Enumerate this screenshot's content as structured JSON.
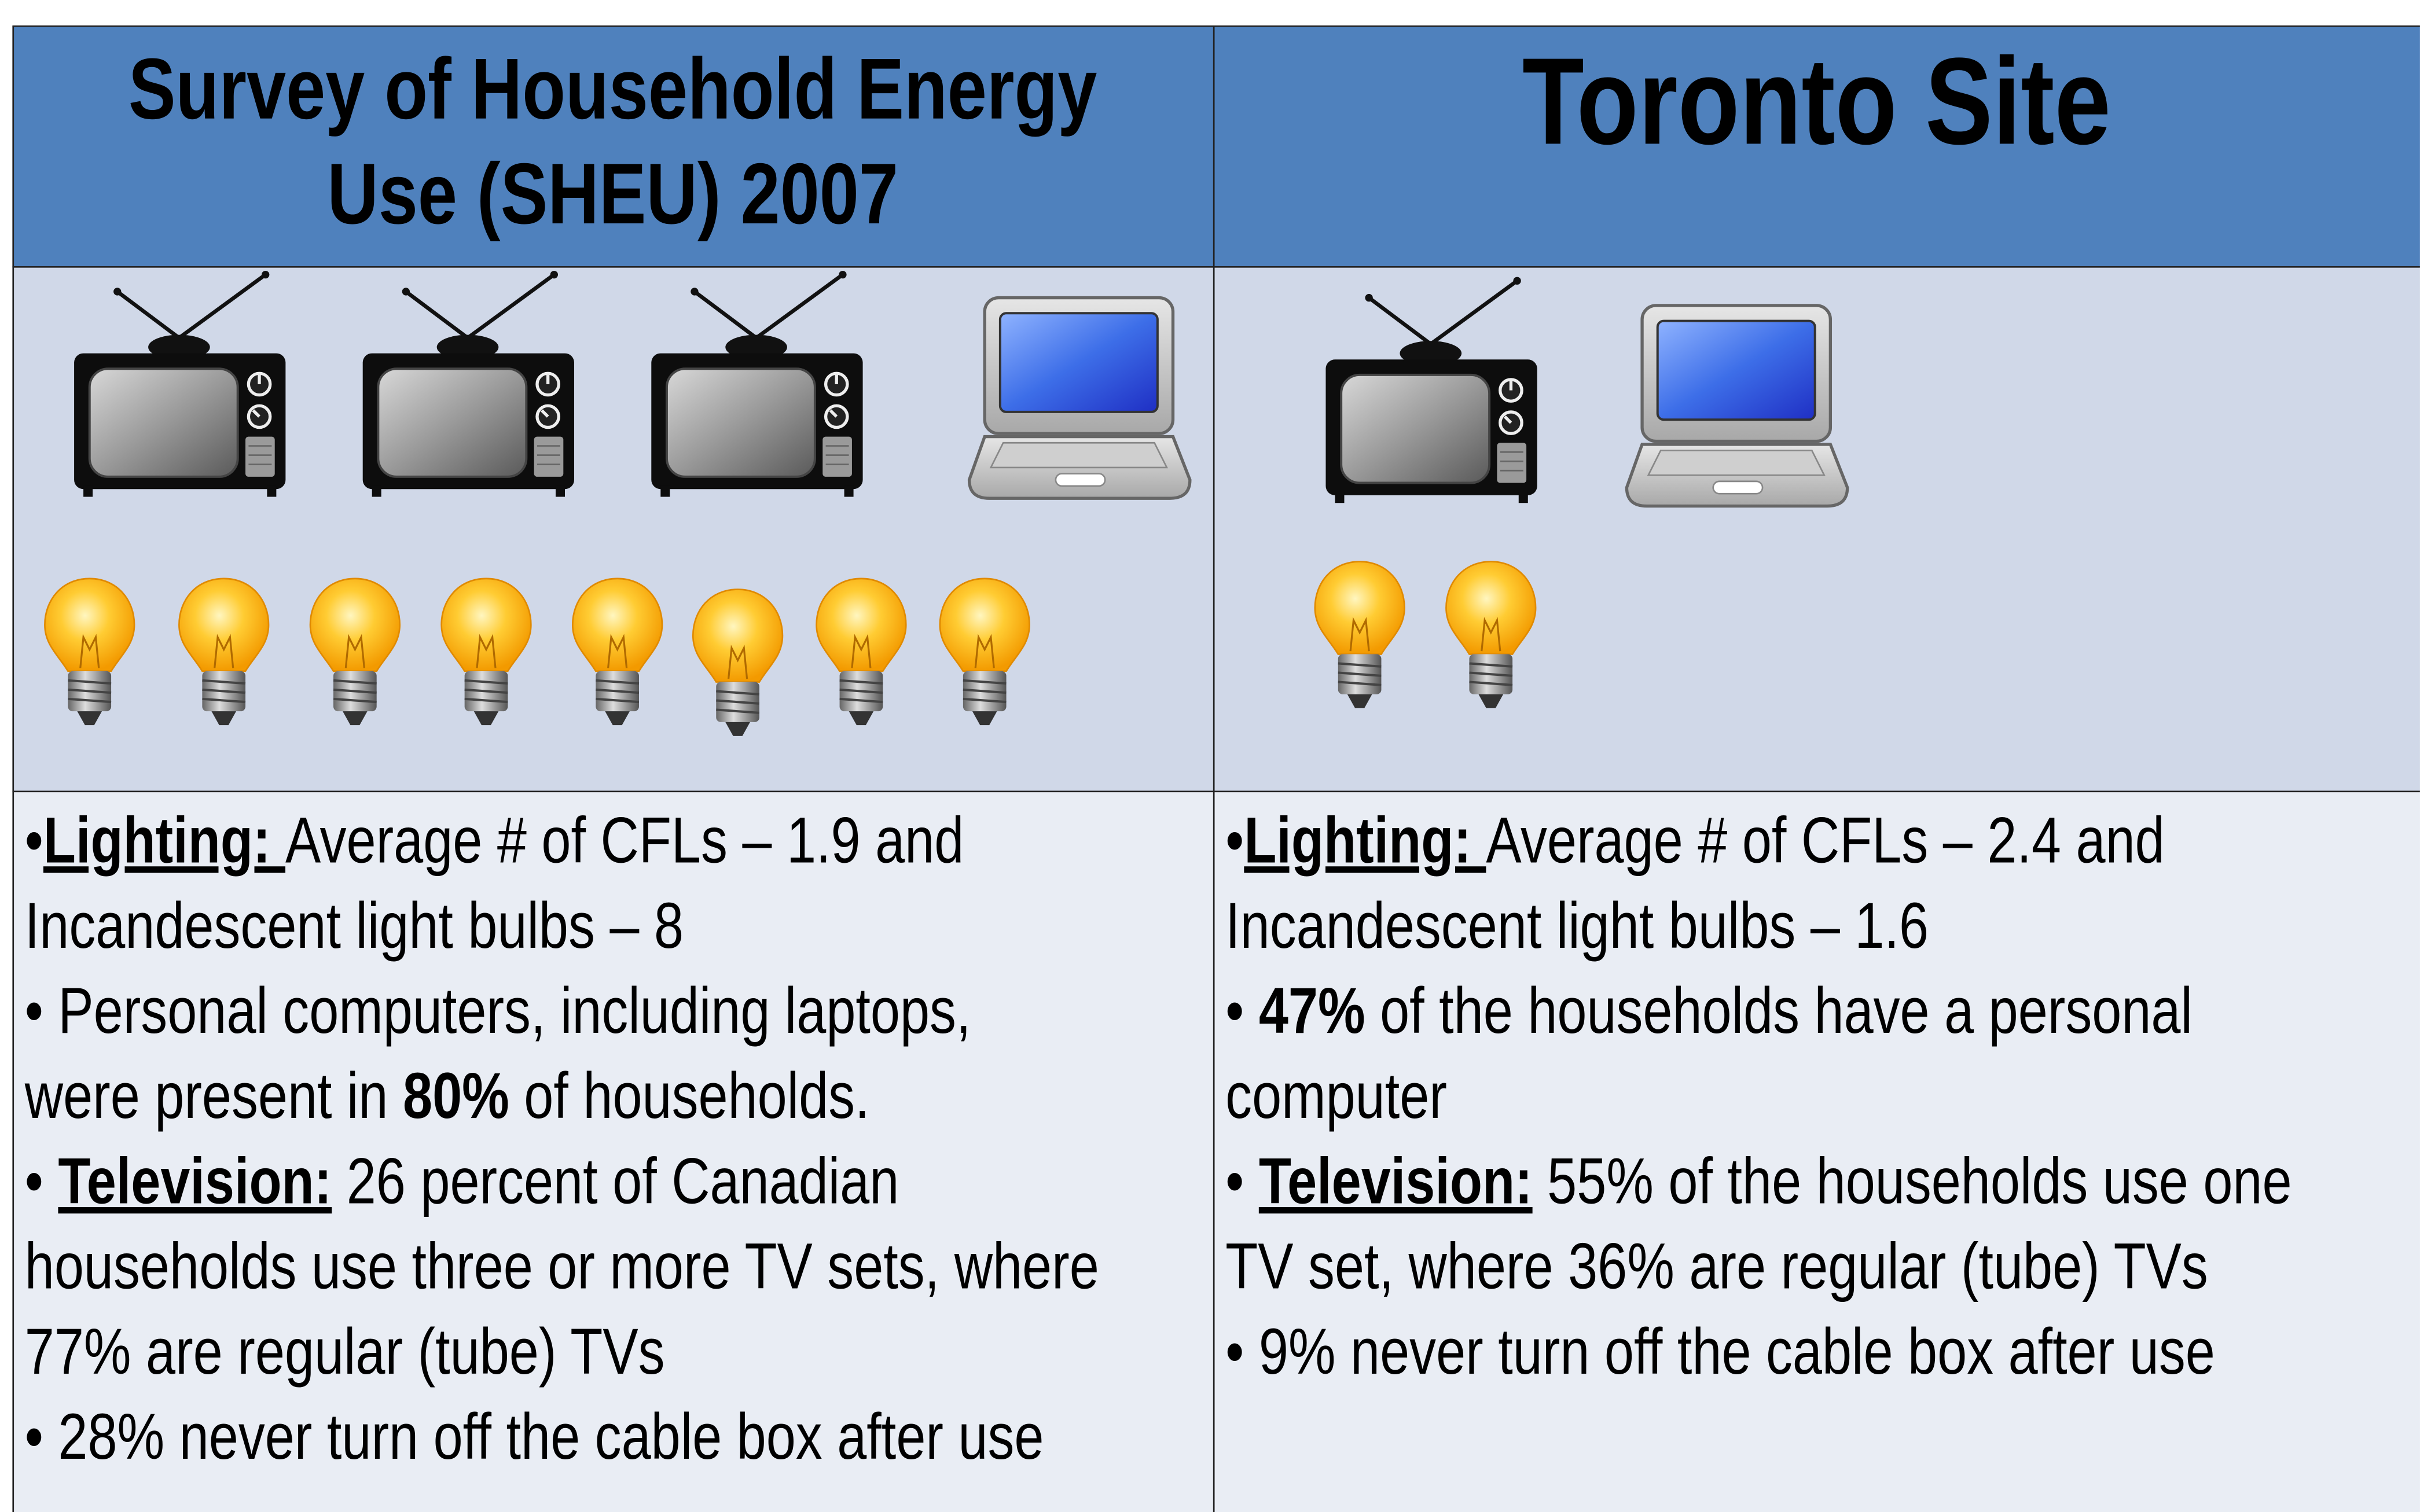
{
  "columns": [
    {
      "title_lines": [
        "Survey of Household Energy",
        "Use (SHEU) 2007"
      ],
      "lines": [
        [
          {
            "text": "•"
          },
          {
            "text": "Lighting: ",
            "bold": true,
            "underline": true
          },
          {
            "text": "Average # of CFLs – 1.9 and"
          }
        ],
        [
          {
            "text": "Incandescent light bulbs – 8"
          }
        ],
        [
          {
            "text": "• Personal computers, including laptops,"
          }
        ],
        [
          {
            "text": "were present in "
          },
          {
            "text": "80%",
            "bold": true
          },
          {
            "text": " of households."
          }
        ],
        [
          {
            "text": "• "
          },
          {
            "text": "Television:",
            "bold": true,
            "underline": true
          },
          {
            "text": " 26 percent of Canadian"
          }
        ],
        [
          {
            "text": "households use three or more TV sets, where"
          }
        ],
        [
          {
            "text": "77% are regular (tube) TVs"
          }
        ],
        [
          {
            "text": "• 28% never turn off the cable box after use"
          }
        ]
      ]
    },
    {
      "title_lines": [
        "Toronto Site"
      ],
      "lines": [
        [
          {
            "text": "•"
          },
          {
            "text": "Lighting: ",
            "bold": true,
            "underline": true
          },
          {
            "text": "Average # of CFLs – 2.4 and"
          }
        ],
        [
          {
            "text": "Incandescent light bulbs – 1.6"
          }
        ],
        [
          {
            "text": "• "
          },
          {
            "text": "47%",
            "bold": true
          },
          {
            "text": " of the households have a personal"
          }
        ],
        [
          {
            "text": "computer"
          }
        ],
        [
          {
            "text": "• "
          },
          {
            "text": "Television:",
            "bold": true,
            "underline": true
          },
          {
            "text": " 55% of the households use one"
          }
        ],
        [
          {
            "text": "TV set, where 36% are regular (tube) TVs"
          }
        ],
        [
          {
            "text": "• 9% never turn off the cable box after use"
          }
        ]
      ]
    }
  ]
}
